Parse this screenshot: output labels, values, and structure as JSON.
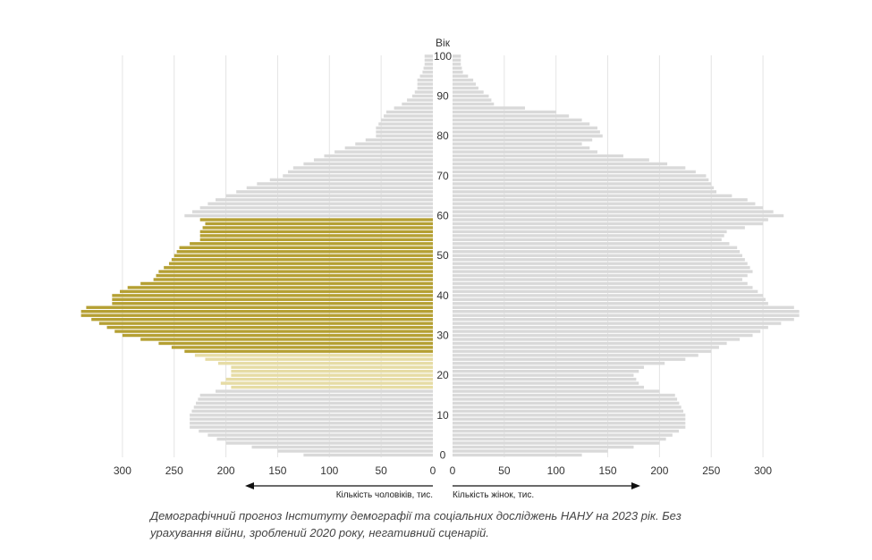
{
  "chart_data": {
    "type": "bar",
    "orientation": "horizontal",
    "subtype": "population-pyramid",
    "y_axis_label": "Вік",
    "age_ticks": [
      "0",
      "10",
      "20",
      "30",
      "40",
      "50",
      "60",
      "70",
      "80",
      "90",
      "100"
    ],
    "x_ticks_left": [
      "300",
      "250",
      "200",
      "150",
      "100",
      "50",
      "0"
    ],
    "x_ticks_right": [
      "0",
      "50",
      "100",
      "150",
      "200",
      "250",
      "300"
    ],
    "x_label_left": "Кількість чоловіків, тис.",
    "x_label_right": "Кількість жінок, тис.",
    "xlim": [
      0,
      340
    ],
    "age_range": [
      0,
      100
    ],
    "grid": true,
    "age_anchors": [
      0,
      3,
      7,
      10,
      15,
      17,
      18,
      20,
      22,
      24,
      26,
      28,
      30,
      32,
      34,
      35,
      36,
      37,
      38,
      40,
      42,
      44,
      46,
      48,
      50,
      52,
      54,
      56,
      58,
      59,
      60,
      62,
      64,
      66,
      68,
      70,
      72,
      74,
      76,
      78,
      80,
      82,
      84,
      86,
      88,
      90,
      92,
      94,
      96,
      98,
      100
    ],
    "series": [
      {
        "name": "Кількість чоловіків, тис.",
        "side": "left",
        "values": [
          125,
          200,
          235,
          235,
          225,
          195,
          205,
          195,
          195,
          220,
          240,
          265,
          300,
          315,
          330,
          340,
          340,
          335,
          310,
          310,
          295,
          270,
          265,
          255,
          250,
          245,
          225,
          225,
          220,
          225,
          240,
          225,
          210,
          190,
          170,
          145,
          135,
          115,
          95,
          75,
          55,
          55,
          50,
          45,
          30,
          20,
          15,
          15,
          10,
          8,
          8
        ]
      },
      {
        "name": "Кількість жінок, тис.",
        "side": "right",
        "values": [
          125,
          200,
          225,
          225,
          215,
          185,
          180,
          175,
          185,
          225,
          250,
          265,
          290,
          305,
          330,
          335,
          335,
          330,
          305,
          300,
          290,
          280,
          290,
          285,
          280,
          275,
          260,
          265,
          300,
          305,
          320,
          300,
          285,
          255,
          250,
          245,
          225,
          190,
          140,
          125,
          145,
          140,
          125,
          100,
          40,
          35,
          25,
          20,
          10,
          8,
          8
        ]
      }
    ],
    "highlight": {
      "series": "Кількість чоловіків, тис.",
      "primary_ages": [
        26,
        59
      ],
      "secondary_ages": [
        17,
        25
      ],
      "primary_color": "#b5a033",
      "secondary_color": "#e6dca5"
    },
    "base_color": "#d9d9d9",
    "grid_color": "#e4e4e4",
    "axis_color": "#111111"
  },
  "caption": "Демографічний прогноз Інституту демографії та соціальних досліджень НАНУ на 2023 рік. Без урахування війни, зроблений 2020 року, негативний сценарій."
}
